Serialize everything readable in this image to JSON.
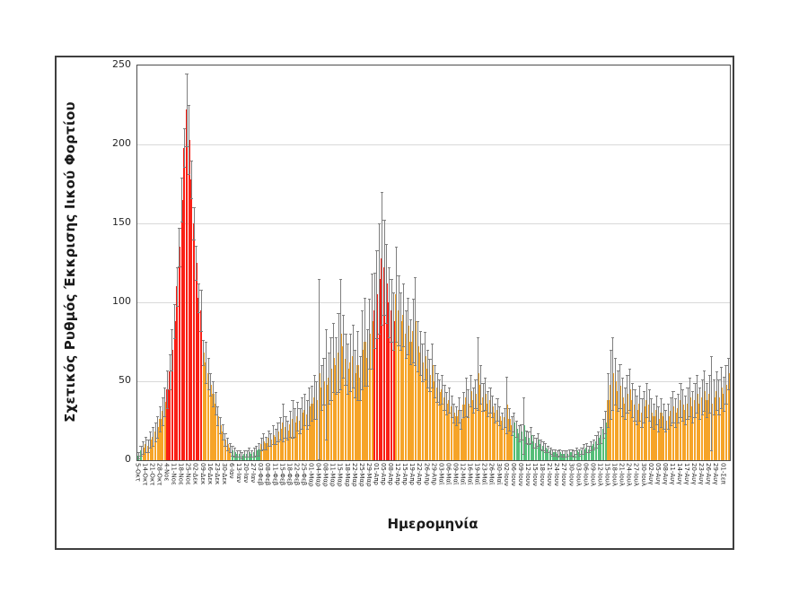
{
  "figure": {
    "background": "#FFFFFF",
    "frame_color": "#3F3F3F"
  },
  "chart_data": {
    "type": "bar",
    "title": "",
    "xlabel": "Ημερομηνία",
    "ylabel": "Σχετικός Ρυθμός Έκκρισης Ιικού Φορτίου",
    "ylim": [
      0,
      250
    ],
    "yticks": [
      0,
      50,
      100,
      150,
      200,
      250
    ],
    "grid": true,
    "legend": "none",
    "bars_per_x_label": 3,
    "colors": {
      "orange": "#F6A428",
      "red": "#FA1F15",
      "green": "#54BE78",
      "error_bar": "#7F7F7F",
      "gridline": "#D9D9D9",
      "axis": "#4D4D4D",
      "text": "#262626"
    },
    "x_tick_labels": [
      "5-Οκτ",
      "14-Οκτ",
      "21-Οκτ",
      "28-Οκτ",
      "4-Νοε",
      "11-Νοε",
      "18-Νοε",
      "25-Νοε",
      "02-Δεκ",
      "09-Δεκ",
      "16-Δεκ",
      "23-Δεκ",
      "30-Δεκ",
      "6-Ιαν",
      "13-Ιαν",
      "20-Ιαν",
      "27-Ιαν",
      "03-Φεβ",
      "08-Φεβ",
      "11-Φεβ",
      "15-Φεβ",
      "18-Φεβ",
      "22-Φεβ",
      "25-Φεβ",
      "01-Μαρ",
      "04-Μαρ",
      "08-Μαρ",
      "11-Μαρ",
      "15-Μαρ",
      "18-Μαρ",
      "22-Μαρ",
      "25-Μαρ",
      "29-Μαρ",
      "01-Απρ",
      "05-Απρ",
      "08-Απρ",
      "12-Απρ",
      "15-Απρ",
      "19-Απρ",
      "22-Απρ",
      "26-Απρ",
      "29-Απρ",
      "03-Μαϊ",
      "06-Μαϊ",
      "09-Μαϊ",
      "12-Μαϊ",
      "16-Μαϊ",
      "19-Μαϊ",
      "23-Μαϊ",
      "26-Μαϊ",
      "30-Μαϊ",
      "02-Ιουν",
      "06-Ιουν",
      "09-Ιουν",
      "12-Ιουν",
      "15-Ιουν",
      "18-Ιουν",
      "21-Ιουν",
      "24-Ιουν",
      "27-Ιουν",
      "30-Ιουν",
      "03-Ιουλ",
      "06-Ιουλ",
      "09-Ιουλ",
      "12-Ιουλ",
      "15-Ιουλ",
      "18-Ιουλ",
      "21-Ιουλ",
      "24-Ιουλ",
      "27-Ιουλ",
      "30-Ιουλ",
      "02-Αυγ",
      "05-Αυγ",
      "08-Αυγ",
      "11-Αυγ",
      "14-Αυγ",
      "17-Αυγ",
      "20-Αυγ",
      "23-Αυγ",
      "26-Αυγ",
      "29-Αυγ",
      "01-Σεπ"
    ],
    "color_segments": [
      {
        "start": 0,
        "end": 1,
        "color": "green"
      },
      {
        "start": 2,
        "end": 11,
        "color": "orange"
      },
      {
        "start": 12,
        "end": 26,
        "color": "red"
      },
      {
        "start": 27,
        "end": 38,
        "color": "orange"
      },
      {
        "start": 39,
        "end": 50,
        "color": "green"
      },
      {
        "start": 51,
        "end": 97,
        "color": "orange"
      },
      {
        "start": 98,
        "end": 106,
        "color": "red"
      },
      {
        "start": 107,
        "end": 155,
        "color": "orange"
      },
      {
        "start": 156,
        "end": 194,
        "color": "green"
      },
      {
        "start": 195,
        "end": 245,
        "color": "orange"
      }
    ],
    "series": [
      {
        "values": [
          3,
          6,
          8,
          10,
          9,
          13,
          15,
          18,
          21,
          26,
          31,
          37,
          45,
          56,
          70,
          88,
          110,
          135,
          165,
          198,
          222,
          203,
          178,
          150,
          125,
          103,
          95,
          68,
          62,
          55,
          48,
          42,
          36,
          28,
          22,
          18,
          13,
          10,
          8,
          6,
          5,
          4,
          4,
          3,
          4,
          4,
          5,
          4,
          5,
          6,
          7,
          10,
          12,
          11,
          14,
          13,
          16,
          15,
          18,
          20,
          24,
          21,
          19,
          23,
          26,
          24,
          28,
          25,
          30,
          32,
          29,
          34,
          36,
          40,
          38,
          55,
          46,
          50,
          48,
          52,
          58,
          65,
          60,
          68,
          80,
          72,
          64,
          58,
          62,
          66,
          55,
          60,
          52,
          70,
          75,
          65,
          80,
          88,
          95,
          105,
          115,
          128,
          122,
          112,
          100,
          95,
          88,
          105,
          95,
          88,
          92,
          80,
          85,
          75,
          82,
          88,
          72,
          68,
          62,
          66,
          58,
          54,
          60,
          50,
          46,
          43,
          45,
          40,
          36,
          38,
          34,
          30,
          28,
          32,
          26,
          35,
          40,
          36,
          44,
          38,
          42,
          55,
          48,
          40,
          42,
          36,
          38,
          34,
          30,
          32,
          28,
          25,
          27,
          35,
          26,
          22,
          24,
          20,
          17,
          18,
          22,
          15,
          14,
          16,
          12,
          11,
          13,
          10,
          9,
          8,
          7,
          6,
          5,
          5,
          4,
          5,
          4,
          4,
          4,
          5,
          5,
          4,
          6,
          5,
          6,
          7,
          8,
          7,
          9,
          10,
          12,
          14,
          16,
          20,
          24,
          38,
          48,
          55,
          50,
          44,
          47,
          40,
          36,
          42,
          45,
          38,
          35,
          32,
          36,
          30,
          34,
          38,
          35,
          30,
          28,
          32,
          26,
          30,
          28,
          25,
          28,
          31,
          34,
          30,
          33,
          38,
          35,
          32,
          36,
          40,
          34,
          38,
          42,
          36,
          40,
          44,
          38,
          42,
          36,
          40,
          44,
          40,
          46,
          42,
          48,
          55
        ],
        "errors_plus_minus": [
          2,
          3,
          4,
          5,
          4,
          5,
          6,
          6,
          7,
          8,
          9,
          9,
          12,
          11,
          13,
          11,
          12,
          12,
          14,
          12,
          23,
          22,
          12,
          10,
          11,
          9,
          13,
          8,
          13,
          10,
          7,
          8,
          7,
          6,
          5,
          5,
          4,
          4,
          3,
          3,
          3,
          2,
          2,
          2,
          2,
          2,
          3,
          2,
          3,
          3,
          4,
          4,
          5,
          4,
          5,
          4,
          6,
          5,
          6,
          7,
          12,
          7,
          6,
          8,
          12,
          9,
          9,
          8,
          10,
          10,
          9,
          12,
          11,
          14,
          12,
          60,
          14,
          15,
          35,
          16,
          20,
          22,
          18,
          25,
          35,
          20,
          16,
          16,
          18,
          20,
          15,
          22,
          14,
          25,
          28,
          18,
          22,
          30,
          24,
          28,
          35,
          42,
          30,
          25,
          22,
          20,
          18,
          30,
          22,
          18,
          20,
          15,
          18,
          14,
          20,
          28,
          16,
          14,
          12,
          15,
          12,
          10,
          14,
          10,
          9,
          8,
          9,
          8,
          7,
          8,
          7,
          6,
          6,
          8,
          6,
          8,
          12,
          9,
          10,
          8,
          9,
          23,
          12,
          9,
          10,
          8,
          8,
          7,
          6,
          7,
          6,
          5,
          6,
          18,
          7,
          6,
          6,
          5,
          5,
          5,
          18,
          4,
          4,
          5,
          4,
          3,
          4,
          3,
          3,
          3,
          2,
          2,
          2,
          2,
          2,
          2,
          2,
          2,
          2,
          2,
          2,
          2,
          2,
          2,
          2,
          3,
          3,
          2,
          3,
          3,
          4,
          4,
          5,
          6,
          7,
          17,
          22,
          23,
          15,
          13,
          14,
          12,
          10,
          12,
          13,
          11,
          10,
          9,
          11,
          9,
          10,
          11,
          10,
          9,
          8,
          9,
          8,
          9,
          8,
          7,
          8,
          9,
          10,
          9,
          9,
          11,
          10,
          9,
          10,
          12,
          10,
          11,
          12,
          10,
          11,
          13,
          11,
          12,
          30,
          11,
          12,
          11,
          13,
          11,
          12,
          10
        ]
      }
    ]
  }
}
